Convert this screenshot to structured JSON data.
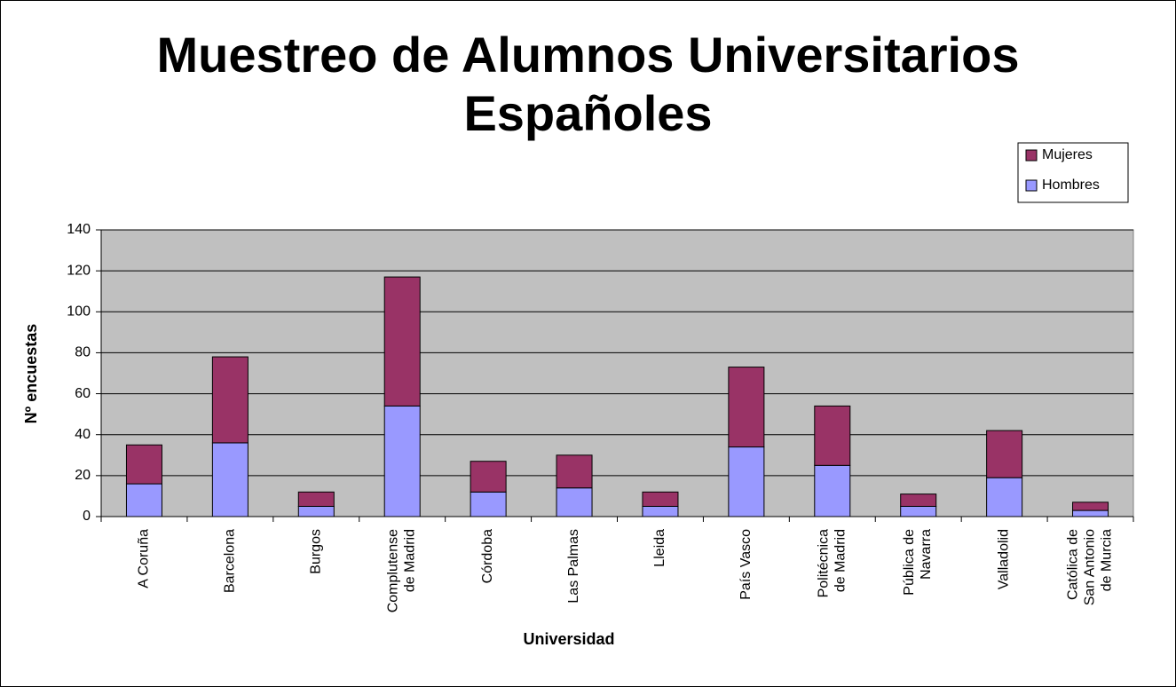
{
  "chart_data": {
    "type": "stacked_bar",
    "title": "Muestreo de Alumnos Universitarios Españoles",
    "x_label": "Universidad",
    "y_label": "Nº encuestas",
    "categories": [
      "A Coruña",
      "Barcelona",
      "Burgos",
      "Complutense de Madrid",
      "Córdoba",
      "Las Palmas",
      "Lleida",
      "País Vasco",
      "Politécnica de Madrid",
      "Pública de Navarra",
      "Valladolid",
      "Católica de San Antonio de Murcia"
    ],
    "series": [
      {
        "name": "Hombres",
        "color": "#9999ff",
        "values": [
          16,
          36,
          5,
          54,
          12,
          14,
          5,
          34,
          25,
          5,
          19,
          3
        ]
      },
      {
        "name": "Mujeres",
        "color": "#993366",
        "values": [
          19,
          42,
          7,
          63,
          15,
          16,
          7,
          39,
          29,
          6,
          23,
          4
        ]
      }
    ],
    "ylim": [
      0,
      140
    ],
    "yticks": [
      0,
      20,
      40,
      60,
      80,
      100,
      120,
      140
    ],
    "grid": true,
    "legend": "top-right"
  }
}
